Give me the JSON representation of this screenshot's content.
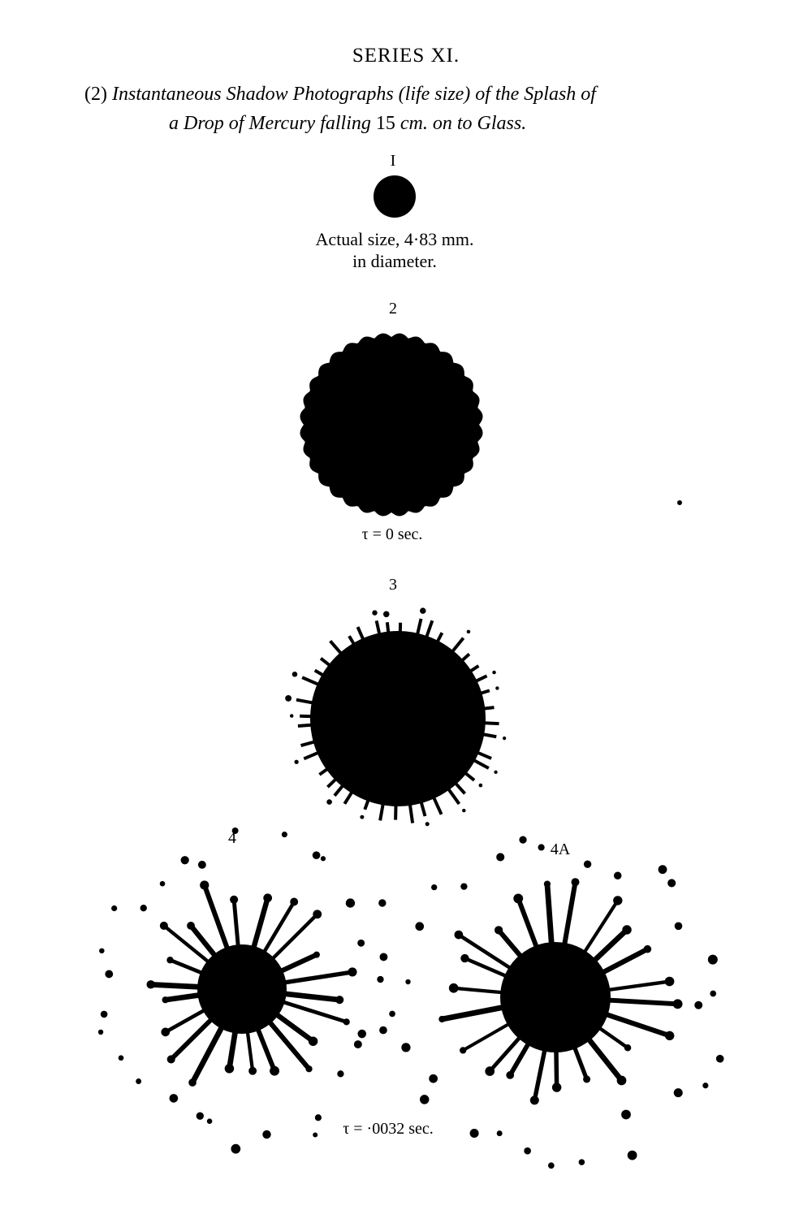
{
  "page": {
    "series_title": "SERIES XI.",
    "caption": {
      "prefix": "(2)",
      "line1": "Instantaneous Shadow Photographs (life size) of the Splash of",
      "line2_a": "a Drop of Mercury falling",
      "line2_num": "15",
      "line2_b": "cm. on to Glass."
    }
  },
  "figures": [
    {
      "id": "1",
      "label": "I",
      "caption_line1": "Actual size, 4·83 mm.",
      "caption_line2": "in diameter."
    },
    {
      "id": "2",
      "label": "2",
      "time": "τ = 0 sec."
    },
    {
      "id": "3",
      "label": "3"
    },
    {
      "id": "4",
      "label": "4"
    },
    {
      "id": "4A",
      "label": "4A"
    }
  ],
  "shared_time_4": "τ = ·0032 sec.",
  "colors": {
    "ink": "#000000",
    "paper": "#ffffff"
  }
}
